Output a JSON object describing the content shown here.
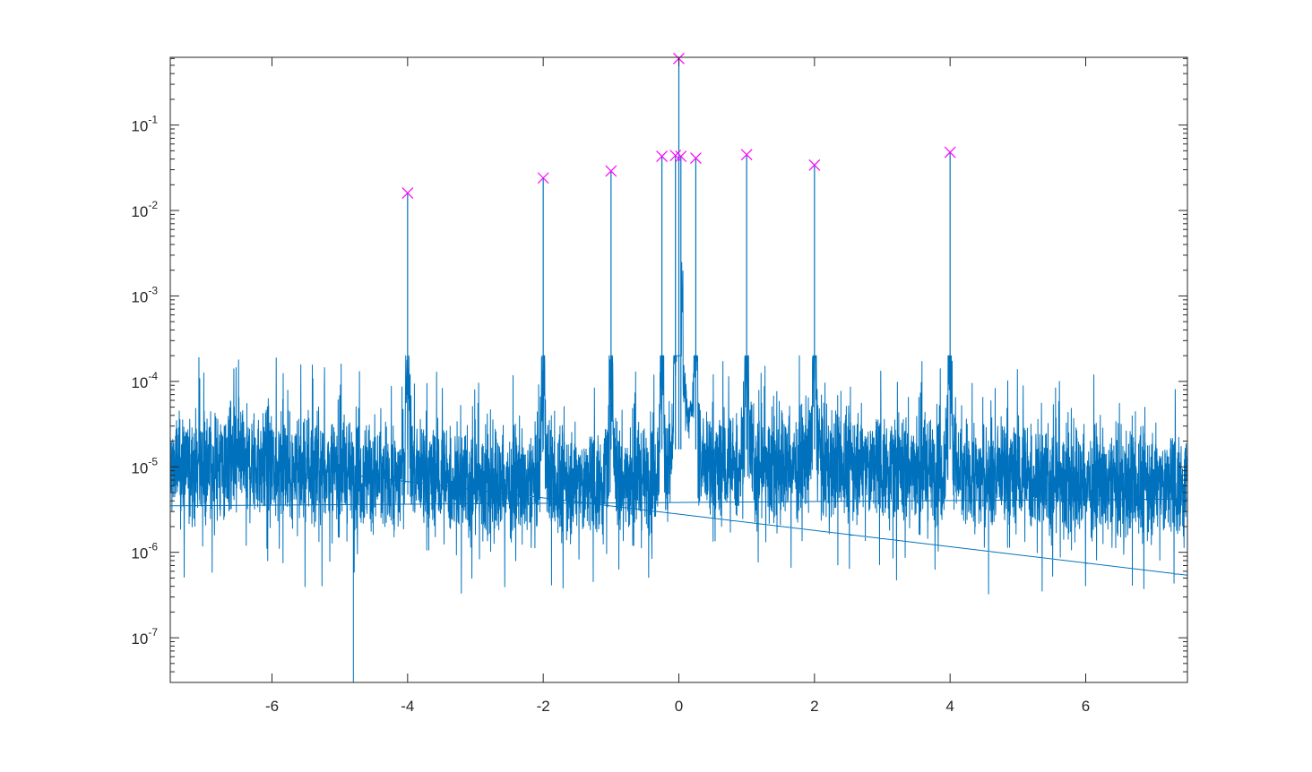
{
  "chart_data": {
    "type": "line",
    "title": "",
    "xlabel": "",
    "ylabel": "",
    "xlim": [
      -7.5,
      7.5
    ],
    "ylim": [
      3e-08,
      0.62
    ],
    "yscale": "log",
    "grid": false,
    "box": true,
    "x_ticks": [
      -6,
      -4,
      -2,
      0,
      2,
      4,
      6
    ],
    "x_tick_labels": [
      "-6",
      "-4",
      "-2",
      "0",
      "2",
      "4",
      "6"
    ],
    "y_ticks": [
      1e-07,
      1e-06,
      1e-05,
      0.0001,
      0.001,
      0.01,
      0.1
    ],
    "y_tick_labels": [
      {
        "base": "10",
        "exp": "-7"
      },
      {
        "base": "10",
        "exp": "-6"
      },
      {
        "base": "10",
        "exp": "-5"
      },
      {
        "base": "10",
        "exp": "-4"
      },
      {
        "base": "10",
        "exp": "-3"
      },
      {
        "base": "10",
        "exp": "-2"
      },
      {
        "base": "10",
        "exp": "-1"
      }
    ],
    "series": [
      {
        "style": "line",
        "color": "#0072BD",
        "noise_floor": {
          "median": 8e-06,
          "low_extreme": 3e-07,
          "high_extreme": 0.0001
        },
        "floor_dips": [
          {
            "x": -4.8,
            "y": 3e-08
          }
        ],
        "wraparound_line": {
          "x": [
            -7.5,
            7.5
          ],
          "y": [
            3.5e-06,
            4.2e-06
          ]
        },
        "peaks": [
          {
            "x": -4.0,
            "y": 0.016
          },
          {
            "x": -2.0,
            "y": 0.024
          },
          {
            "x": -1.0,
            "y": 0.029
          },
          {
            "x": -0.25,
            "y": 0.043
          },
          {
            "x": -0.05,
            "y": 0.044
          },
          {
            "x": 0.0,
            "y": 0.6
          },
          {
            "x": 0.03,
            "y": 0.043
          },
          {
            "x": 0.25,
            "y": 0.041
          },
          {
            "x": 1.0,
            "y": 0.045
          },
          {
            "x": 2.0,
            "y": 0.034
          },
          {
            "x": 4.0,
            "y": 0.048
          }
        ]
      },
      {
        "style": "markers",
        "marker": "x",
        "color": "#FF00FF",
        "x": [
          -4.0,
          -2.0,
          -1.0,
          -0.25,
          -0.05,
          0.0,
          0.03,
          0.25,
          1.0,
          2.0,
          4.0
        ],
        "y": [
          0.016,
          0.024,
          0.029,
          0.043,
          0.044,
          0.6,
          0.043,
          0.041,
          0.045,
          0.034,
          0.048
        ]
      }
    ],
    "colors": {
      "line": "#0072BD",
      "marker": "#FF00FF",
      "axis": "#262626",
      "background": "#ffffff"
    }
  }
}
